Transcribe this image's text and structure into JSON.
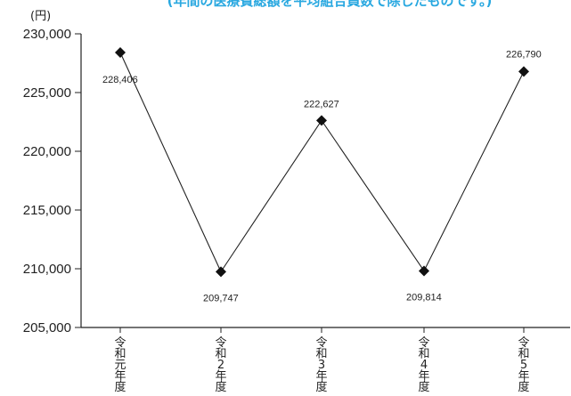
{
  "chart_data": {
    "type": "line",
    "subtitle": "(年間の医療費総額を平均組合員数で除したものです。)",
    "unit_label": "(円)",
    "categories": [
      [
        "令",
        "和",
        "元",
        "年",
        "度"
      ],
      [
        "令",
        "和",
        "2",
        "年",
        "度"
      ],
      [
        "令",
        "和",
        "3",
        "年",
        "度"
      ],
      [
        "令",
        "和",
        "4",
        "年",
        "度"
      ],
      [
        "令",
        "和",
        "5",
        "年",
        "度"
      ]
    ],
    "series": [
      {
        "values": [
          228406,
          209747,
          222627,
          209814,
          226790
        ],
        "data_labels": [
          "228,406",
          "209,747",
          "222,627",
          "209,814",
          "226,790"
        ],
        "marker": "diamond",
        "color": "#222222"
      }
    ],
    "ylim": [
      205000,
      230000
    ],
    "yticks": [
      205000,
      210000,
      215000,
      220000,
      225000,
      230000
    ],
    "ytick_labels": [
      "205,000",
      "210,000",
      "215,000",
      "220,000",
      "225,000",
      "230,000"
    ],
    "grid": false,
    "legend": "none"
  }
}
